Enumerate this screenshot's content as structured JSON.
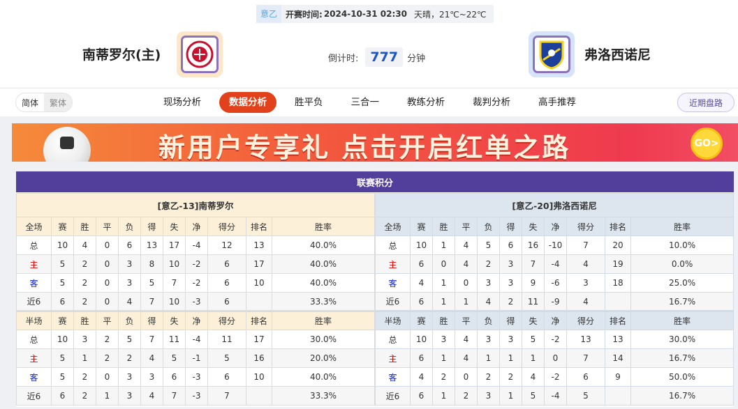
{
  "match": {
    "league": "意乙",
    "kickoff_label": "开赛时间:",
    "kickoff": "2024-10-31 02:30",
    "weather": "天晴，21℃~22℃"
  },
  "home_team": {
    "name": "南蒂罗尔(主)",
    "logo_color": "#fde7c8"
  },
  "away_team": {
    "name": "弗洛西诺尼",
    "logo_color": "#d6e4fb"
  },
  "countdown": {
    "label": "倒计时:",
    "value": "777",
    "unit": "分钟"
  },
  "lang": {
    "simplified": "简体",
    "traditional": "繁体"
  },
  "tabs": [
    "现场分析",
    "数据分析",
    "胜平负",
    "三合一",
    "教练分析",
    "裁判分析",
    "高手推荐"
  ],
  "active_tab": "数据分析",
  "recent_button": "近期盘路",
  "banner": {
    "text": "新用户专享礼  点击开启红单之路",
    "go": "GO>"
  },
  "standings": {
    "title": "联赛积分",
    "headers_full": [
      "全场",
      "赛",
      "胜",
      "平",
      "负",
      "得",
      "失",
      "净",
      "得分",
      "排名",
      "胜率"
    ],
    "headers_half": [
      "半场",
      "赛",
      "胜",
      "平",
      "负",
      "得",
      "失",
      "净",
      "得分",
      "排名",
      "胜率"
    ],
    "home": {
      "title": "[意乙-13]南蒂罗尔",
      "full": [
        [
          "总",
          "10",
          "4",
          "0",
          "6",
          "13",
          "17",
          "-4",
          "12",
          "13",
          "40.0%"
        ],
        [
          "主",
          "5",
          "2",
          "0",
          "3",
          "8",
          "10",
          "-2",
          "6",
          "17",
          "40.0%"
        ],
        [
          "客",
          "5",
          "2",
          "0",
          "3",
          "5",
          "7",
          "-2",
          "6",
          "10",
          "40.0%"
        ],
        [
          "近6",
          "6",
          "2",
          "0",
          "4",
          "7",
          "10",
          "-3",
          "6",
          "",
          "33.3%"
        ]
      ],
      "half": [
        [
          "总",
          "10",
          "3",
          "2",
          "5",
          "7",
          "11",
          "-4",
          "11",
          "17",
          "30.0%"
        ],
        [
          "主",
          "5",
          "1",
          "2",
          "2",
          "4",
          "5",
          "-1",
          "5",
          "16",
          "20.0%"
        ],
        [
          "客",
          "5",
          "2",
          "0",
          "3",
          "3",
          "6",
          "-3",
          "6",
          "10",
          "40.0%"
        ],
        [
          "近6",
          "6",
          "2",
          "1",
          "3",
          "4",
          "7",
          "-3",
          "7",
          "",
          "33.3%"
        ]
      ]
    },
    "away": {
      "title": "[意乙-20]弗洛西诺尼",
      "full": [
        [
          "总",
          "10",
          "1",
          "4",
          "5",
          "6",
          "16",
          "-10",
          "7",
          "20",
          "10.0%"
        ],
        [
          "主",
          "6",
          "0",
          "4",
          "2",
          "3",
          "7",
          "-4",
          "4",
          "19",
          "0.0%"
        ],
        [
          "客",
          "4",
          "1",
          "0",
          "3",
          "3",
          "9",
          "-6",
          "3",
          "18",
          "25.0%"
        ],
        [
          "近6",
          "6",
          "1",
          "1",
          "4",
          "2",
          "11",
          "-9",
          "4",
          "",
          "16.7%"
        ]
      ],
      "half": [
        [
          "总",
          "10",
          "3",
          "4",
          "3",
          "3",
          "5",
          "-2",
          "13",
          "13",
          "30.0%"
        ],
        [
          "主",
          "6",
          "1",
          "4",
          "1",
          "1",
          "1",
          "0",
          "7",
          "14",
          "16.7%"
        ],
        [
          "客",
          "4",
          "2",
          "0",
          "2",
          "2",
          "4",
          "-2",
          "6",
          "9",
          "50.0%"
        ],
        [
          "近6",
          "6",
          "1",
          "2",
          "3",
          "1",
          "5",
          "-4",
          "5",
          "",
          "16.7%"
        ]
      ]
    }
  },
  "colors": {
    "accent": "#e2421b",
    "header": "#523f9b",
    "home_label": "#e00000",
    "away_label": "#0a22d8"
  }
}
